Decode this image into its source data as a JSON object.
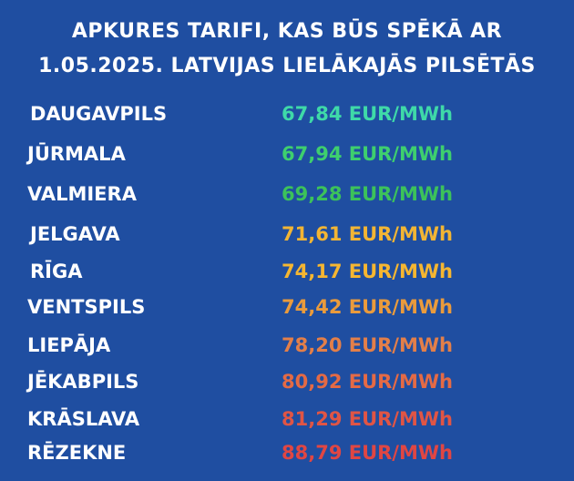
{
  "title": {
    "line1": "APKURES TARIFI, KAS BŪS SPĒKĀ AR",
    "line2": "1.05.2025. LATVIJAS LIELĀKAJĀS PILSĒTĀS"
  },
  "rows": [
    {
      "city": "DAUGAVPILS",
      "tariff": "67,84 EUR/MWh",
      "color": "#3fd9a8"
    },
    {
      "city": "JŪRMALA",
      "tariff": "67,94 EUR/MWh",
      "color": "#3ecf6e"
    },
    {
      "city": "VALMIERA",
      "tariff": "69,28 EUR/MWh",
      "color": "#3cc25a"
    },
    {
      "city": "JELGAVA",
      "tariff": "71,61 EUR/MWh",
      "color": "#f2b534"
    },
    {
      "city": "RĪGA",
      "tariff": "74,17 EUR/MWh",
      "color": "#f5b631"
    },
    {
      "city": "VENTSPILS",
      "tariff": "74,42 EUR/MWh",
      "color": "#ea9b3c"
    },
    {
      "city": "LIEPĀJA",
      "tariff": "78,20 EUR/MWh",
      "color": "#e37f49"
    },
    {
      "city": "JĒKABPILS",
      "tariff": "80,92 EUR/MWh",
      "color": "#e46a45"
    },
    {
      "city": "KRĀSLAVA",
      "tariff": "81,29 EUR/MWh",
      "color": "#e05545"
    },
    {
      "city": "RĒZEKNE",
      "tariff": "88,79 EUR/MWh",
      "color": "#e04643"
    }
  ]
}
